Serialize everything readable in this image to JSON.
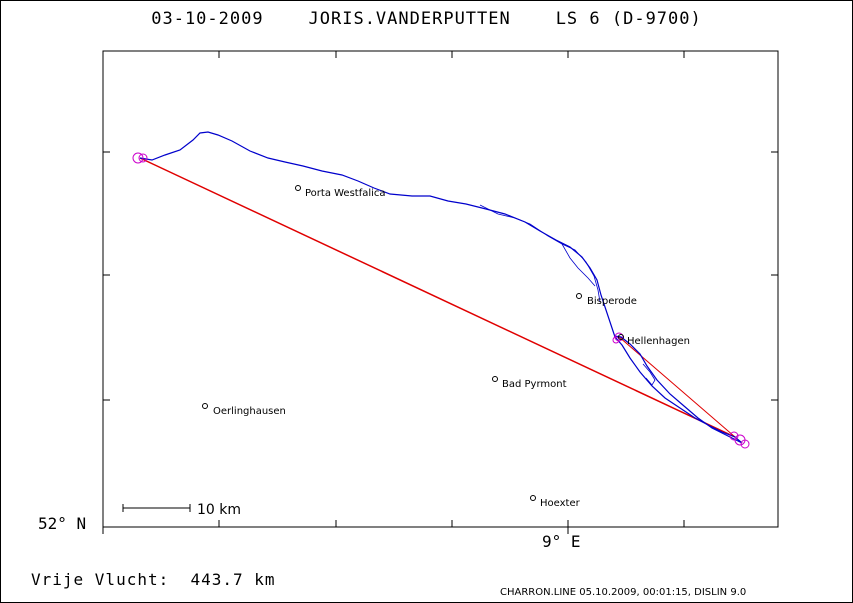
{
  "header": {
    "title": "03-10-2009    JORIS.VANDERPUTTEN    LS 6 (D-9700)"
  },
  "axes": {
    "lat_label": "52° N",
    "lon_label": "9° E"
  },
  "scale_bar": {
    "label": "10 km"
  },
  "towns": [
    {
      "name": "Porta Westfalica"
    },
    {
      "name": "Bisperode"
    },
    {
      "name": "Hellenhagen"
    },
    {
      "name": "Bad Pyrmont"
    },
    {
      "name": "Oerlinghausen"
    },
    {
      "name": "Hoexter"
    }
  ],
  "colors": {
    "track": "#0000cc",
    "straight_line": "#e00000",
    "turnpoint": "#cc00cc"
  },
  "footer": {
    "distance": "Vrije Vlucht:  443.7 km",
    "software": "CHARRON.LINE 05.10.2009, 00:01:15, DISLIN 9.0"
  }
}
